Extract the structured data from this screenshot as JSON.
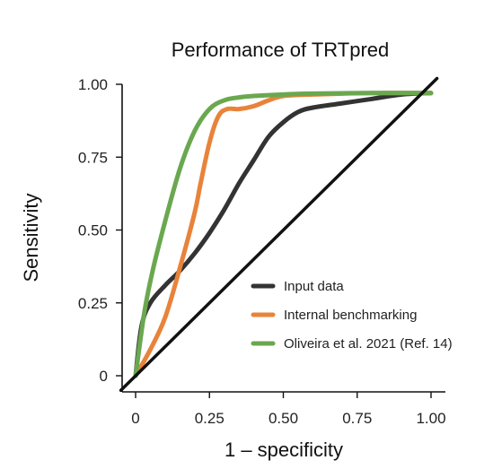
{
  "chart_data": {
    "type": "line",
    "title": "Performance of TRTpred",
    "xlabel": "1 – specificity",
    "ylabel": "Sensitivity",
    "xlim": [
      0,
      1.0
    ],
    "ylim": [
      0,
      1.0
    ],
    "x_ticks": [
      0,
      0.25,
      0.5,
      0.75,
      1.0
    ],
    "x_tick_labels": [
      "0",
      "0.25",
      "0.50",
      "0.75",
      "1.00"
    ],
    "y_ticks": [
      0,
      0.25,
      0.5,
      0.75,
      1.0
    ],
    "y_tick_labels": [
      "0",
      "0.25",
      "0.50",
      "0.75",
      "1.00"
    ],
    "grid": false,
    "legend_position": "bottom-right",
    "series": [
      {
        "name": "Input data",
        "color": "#333333",
        "x": [
          0,
          0.02,
          0.05,
          0.1,
          0.15,
          0.2,
          0.25,
          0.3,
          0.35,
          0.4,
          0.45,
          0.5,
          0.55,
          0.6,
          0.7,
          0.8,
          0.9,
          1.0
        ],
        "y": [
          0,
          0.17,
          0.25,
          0.31,
          0.36,
          0.42,
          0.49,
          0.57,
          0.66,
          0.74,
          0.82,
          0.87,
          0.905,
          0.92,
          0.935,
          0.95,
          0.965,
          0.97
        ]
      },
      {
        "name": "Internal benchmarking",
        "color": "#E8833A",
        "x": [
          0,
          0.05,
          0.1,
          0.15,
          0.2,
          0.22,
          0.25,
          0.28,
          0.31,
          0.35,
          0.4,
          0.45,
          0.5,
          0.6,
          0.8,
          1.0
        ],
        "y": [
          0,
          0.09,
          0.2,
          0.37,
          0.56,
          0.66,
          0.8,
          0.89,
          0.915,
          0.915,
          0.925,
          0.945,
          0.96,
          0.965,
          0.97,
          0.97
        ]
      },
      {
        "name": "Oliveira et al. 2021 (Ref. 14)",
        "color": "#6AA84F",
        "x": [
          0,
          0.03,
          0.06,
          0.1,
          0.15,
          0.2,
          0.25,
          0.3,
          0.35,
          0.4,
          0.5,
          0.6,
          0.8,
          1.0
        ],
        "y": [
          0,
          0.22,
          0.37,
          0.53,
          0.71,
          0.84,
          0.915,
          0.945,
          0.955,
          0.96,
          0.965,
          0.968,
          0.97,
          0.97
        ]
      },
      {
        "name": "",
        "color": "#111111",
        "x": [
          -0.05,
          1.02
        ],
        "y": [
          -0.05,
          1.02
        ]
      }
    ]
  }
}
